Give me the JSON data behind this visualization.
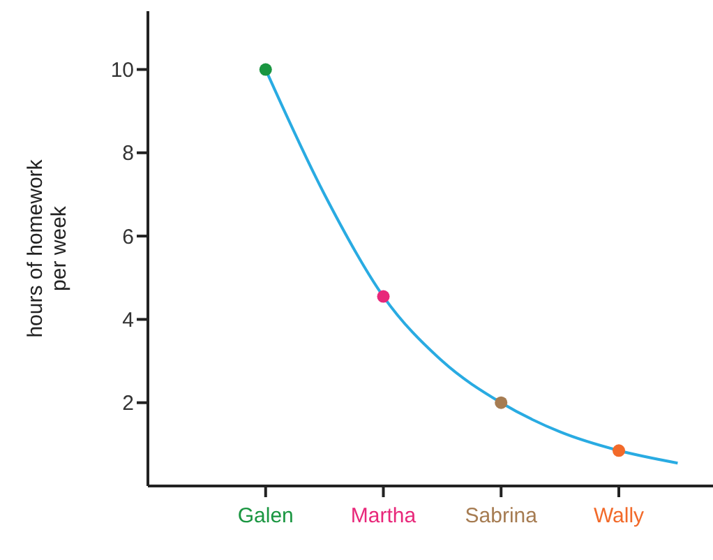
{
  "chart_data": {
    "type": "scatter",
    "ylabel": "hours of homework per week",
    "ylim": [
      0,
      11.4
    ],
    "yticks": [
      2,
      4,
      6,
      8,
      10
    ],
    "categories": [
      "Galen",
      null,
      "Martha",
      null,
      "Sabrina",
      null,
      "Wally",
      null
    ],
    "grid": false,
    "legend": false,
    "marker": "circle",
    "series": [
      {
        "type": "line",
        "marker": "none",
        "color": "#29abe2",
        "values": [
          10,
          7.0,
          4.55,
          3.0,
          2.0,
          1.3,
          0.85,
          0.55
        ]
      },
      {
        "values": [
          10,
          null,
          4.55,
          null,
          2.0,
          null,
          0.85,
          null
        ],
        "colors": [
          "#1a9641",
          null,
          "#e8287a",
          null,
          "#a67c52",
          null,
          "#f26a2a",
          null
        ]
      }
    ]
  }
}
